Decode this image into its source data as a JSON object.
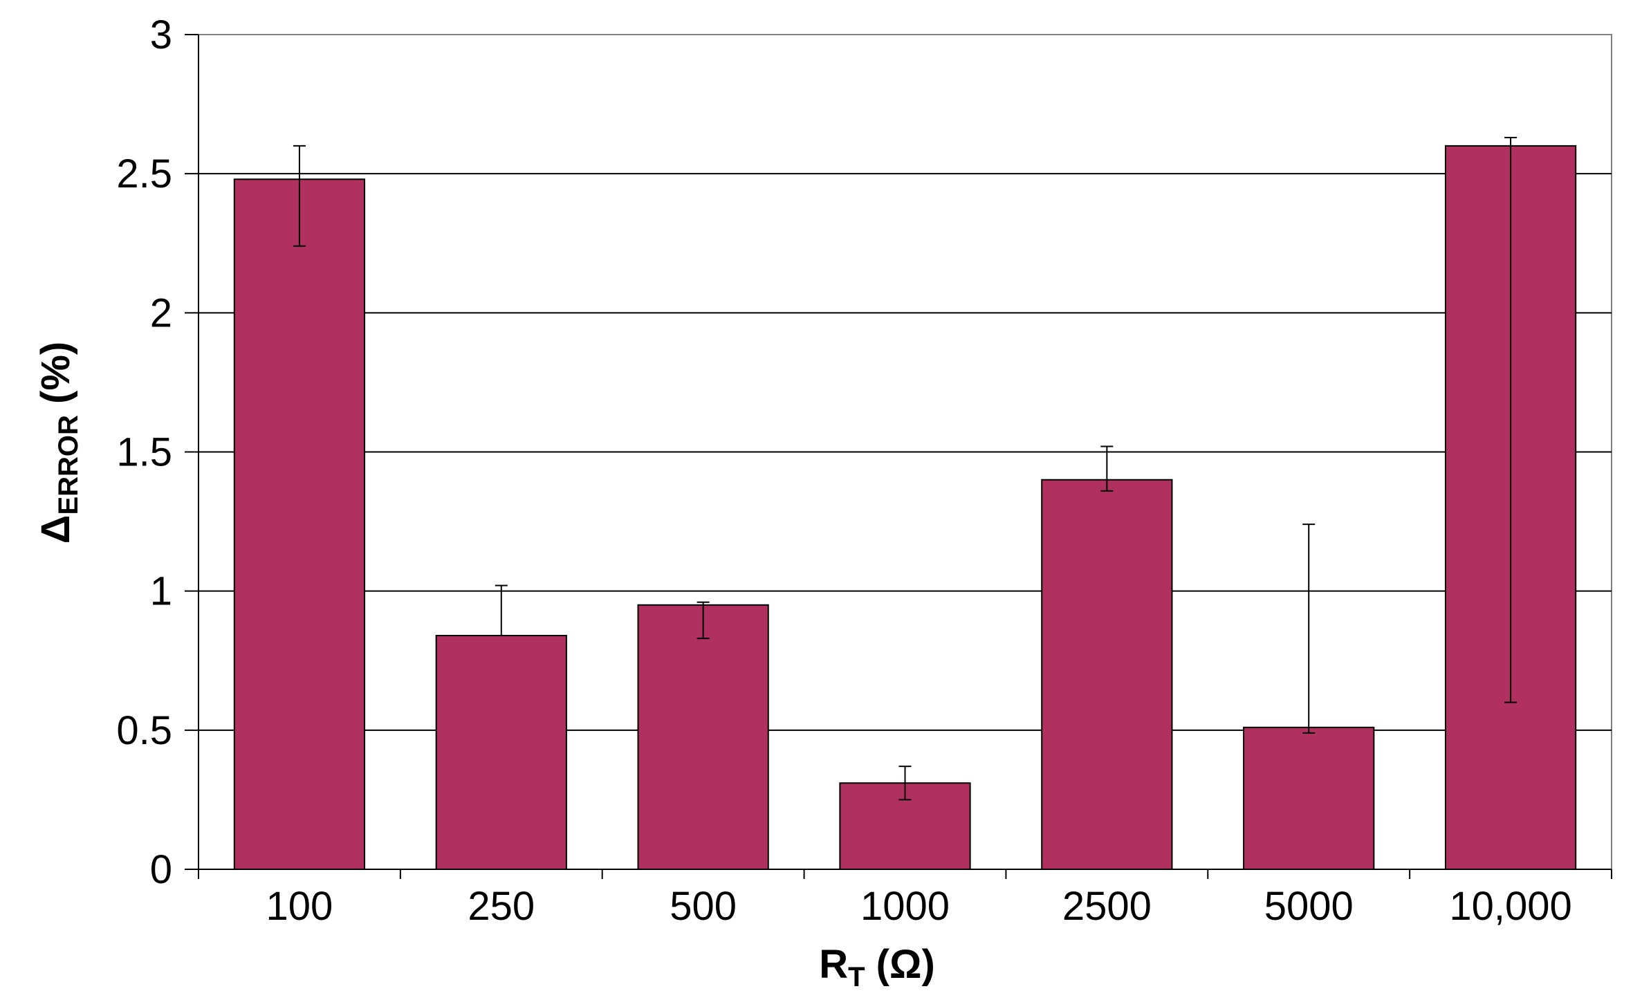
{
  "chart_data": {
    "type": "bar",
    "categories": [
      "100",
      "250",
      "500",
      "1000",
      "2500",
      "5000",
      "10,000"
    ],
    "values": [
      2.48,
      0.84,
      0.95,
      0.31,
      1.4,
      0.51,
      2.6
    ],
    "error_low": [
      2.24,
      0.84,
      0.83,
      0.25,
      1.36,
      0.49,
      0.6
    ],
    "error_high": [
      2.6,
      1.02,
      0.96,
      0.37,
      1.52,
      1.24,
      2.63
    ],
    "title": "",
    "xlabel": {
      "main": "R",
      "sub": "T",
      "unit": " (Ω)"
    },
    "ylabel": {
      "main": "Δ",
      "sub": "ERROR",
      "unit": " (%)"
    },
    "ylim": [
      0,
      3
    ],
    "yticks": [
      "0",
      "0.5",
      "1",
      "1.5",
      "2",
      "2.5",
      "3"
    ],
    "grid": true,
    "legend": "none",
    "bar_color": "#B03060"
  }
}
